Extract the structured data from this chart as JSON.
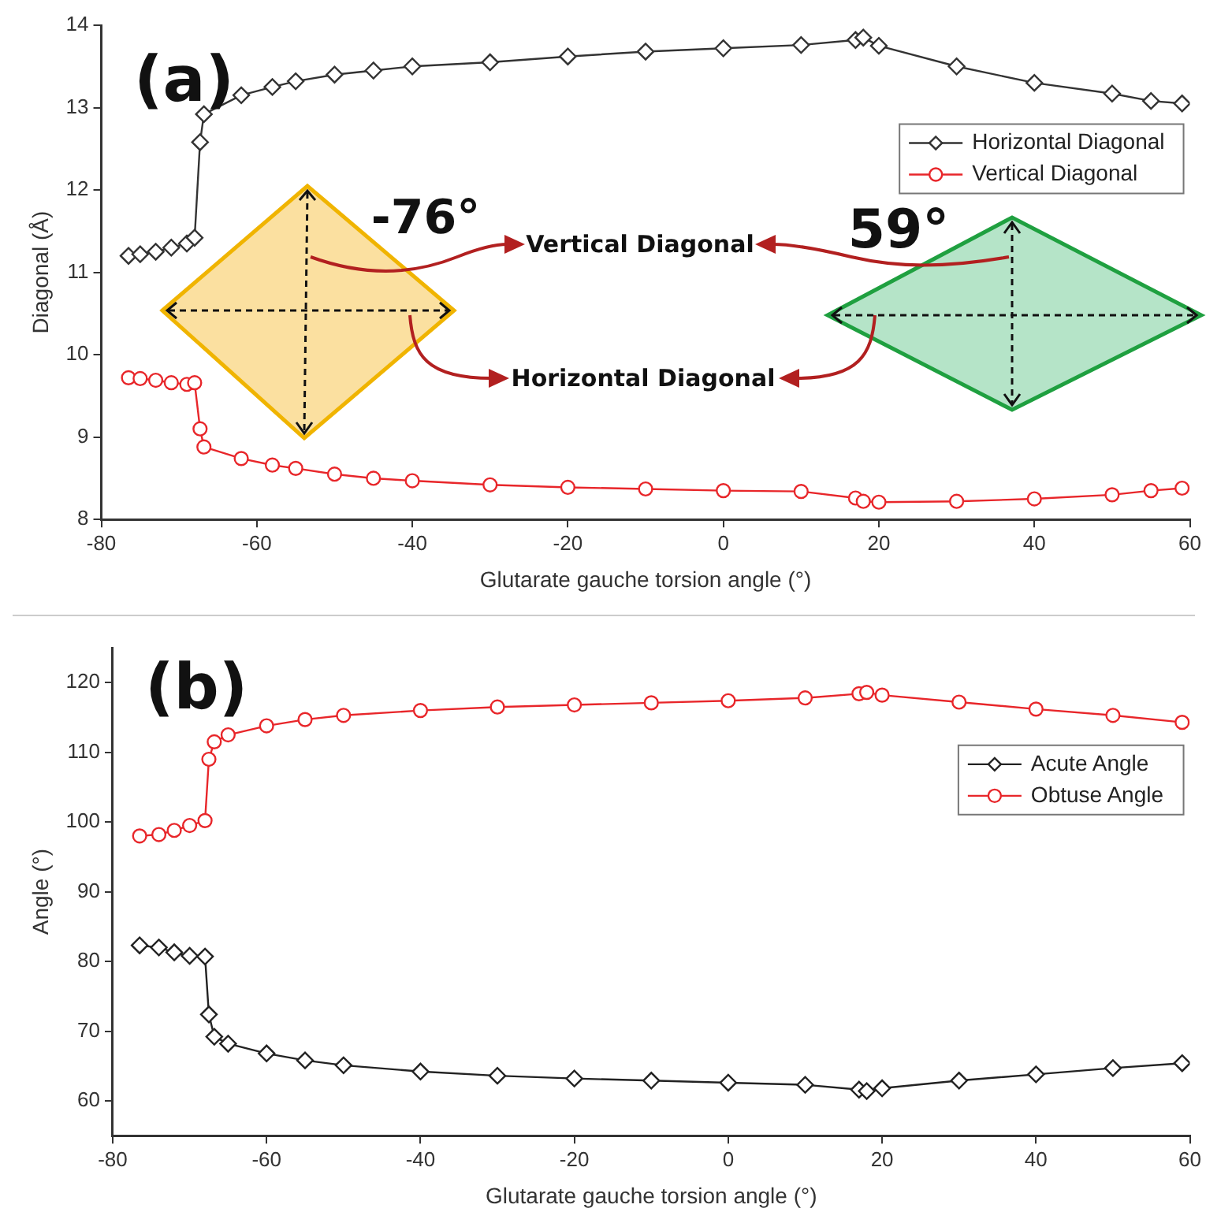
{
  "chart_data": [
    {
      "type": "line",
      "xlabel": "Glutarate gauche torsion angle (°)",
      "ylabel": "Diagonal (Å)",
      "xlim": [
        -80,
        60
      ],
      "xticks": [
        -80,
        -60,
        -40,
        -20,
        0,
        20,
        40,
        60
      ],
      "ylim": [
        8,
        14
      ],
      "yticks": [
        8,
        9,
        10,
        11,
        12,
        13,
        14
      ],
      "legend": "top right",
      "annotations": [
        "(a)",
        "-76°",
        "59°",
        "Vertical Diagonal",
        "Horizontal Diagonal"
      ],
      "x": [
        -76.5,
        -75,
        -73,
        -71,
        -69,
        -68,
        -67.3,
        -66.8,
        -62,
        -58,
        -55,
        -50,
        -45,
        -40,
        -30,
        -20,
        -10,
        0,
        10,
        17,
        18,
        20,
        30,
        40,
        50,
        55,
        59
      ],
      "series": [
        {
          "name": "Horizontal Diagonal",
          "color": "#333333",
          "marker": "diamond",
          "values": [
            11.2,
            11.22,
            11.25,
            11.3,
            11.35,
            11.42,
            12.58,
            12.92,
            13.15,
            13.25,
            13.32,
            13.4,
            13.45,
            13.5,
            13.55,
            13.62,
            13.68,
            13.72,
            13.76,
            13.82,
            13.85,
            13.75,
            13.5,
            13.3,
            13.17,
            13.08,
            13.05
          ]
        },
        {
          "name": "Vertical Diagonal",
          "color": "#e8262a",
          "marker": "circle",
          "values": [
            9.72,
            9.71,
            9.69,
            9.66,
            9.64,
            9.66,
            9.1,
            8.88,
            8.74,
            8.66,
            8.62,
            8.55,
            8.5,
            8.47,
            8.42,
            8.39,
            8.37,
            8.35,
            8.34,
            8.26,
            8.22,
            8.21,
            8.22,
            8.25,
            8.3,
            8.35,
            8.38
          ]
        }
      ]
    },
    {
      "type": "line",
      "xlabel": "Glutarate gauche torsion angle (°)",
      "ylabel": "Angle (°)",
      "xlim": [
        -80,
        60
      ],
      "xticks": [
        -80,
        -60,
        -40,
        -20,
        0,
        20,
        40,
        60
      ],
      "ylim": [
        55,
        125
      ],
      "yticks": [
        60,
        70,
        80,
        90,
        100,
        110,
        120
      ],
      "legend": "top right",
      "annotations": [
        "(b)"
      ],
      "x": [
        -76.5,
        -74,
        -72,
        -70,
        -68,
        -67.5,
        -66.8,
        -65,
        -60,
        -55,
        -50,
        -40,
        -30,
        -20,
        -10,
        0,
        10,
        17,
        18,
        20,
        30,
        40,
        50,
        59
      ],
      "series": [
        {
          "name": "Acute Angle",
          "color": "#222222",
          "marker": "diamond",
          "values": [
            82.3,
            82,
            81.3,
            80.8,
            80.7,
            72.4,
            69.2,
            68.2,
            66.8,
            65.8,
            65.1,
            64.2,
            63.6,
            63.2,
            62.9,
            62.6,
            62.3,
            61.6,
            61.4,
            61.8,
            62.9,
            63.8,
            64.7,
            65.4
          ]
        },
        {
          "name": "Obtuse Angle",
          "color": "#e8262a",
          "marker": "circle",
          "values": [
            98,
            98.2,
            98.8,
            99.5,
            100.2,
            109,
            111.5,
            112.5,
            113.8,
            114.7,
            115.3,
            116,
            116.5,
            116.8,
            117.1,
            117.4,
            117.8,
            118.4,
            118.6,
            118.2,
            117.2,
            116.2,
            115.3,
            114.3
          ]
        }
      ]
    }
  ]
}
